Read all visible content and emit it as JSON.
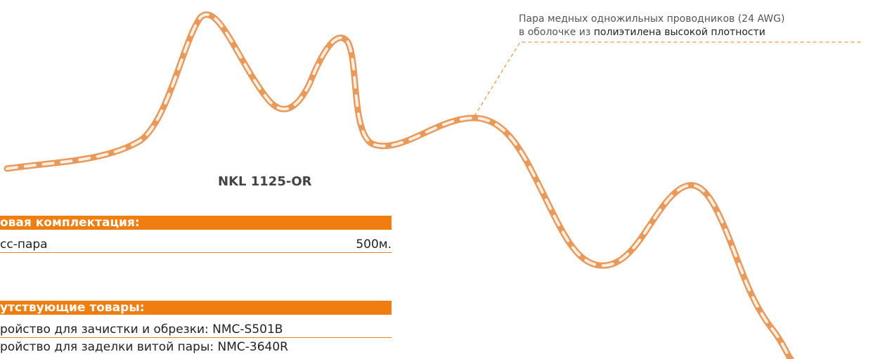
{
  "annotation": {
    "line1": "Пара медных одножильных проводников (24 AWG)",
    "line2_prefix": "в оболочке из",
    "line2_highlight": "полиэтилена высокой плотности"
  },
  "product_name": "NKL 1125-OR",
  "package": {
    "title": "овая комплектация:",
    "rows": [
      [
        "сс-пара",
        "500м."
      ]
    ]
  },
  "related": {
    "title": "утствующие товары:",
    "rows": [
      "ройство для зачистки и обрезки: NMC-S501B",
      "ройство для заделки витой пары: NMC-3640R"
    ]
  }
}
